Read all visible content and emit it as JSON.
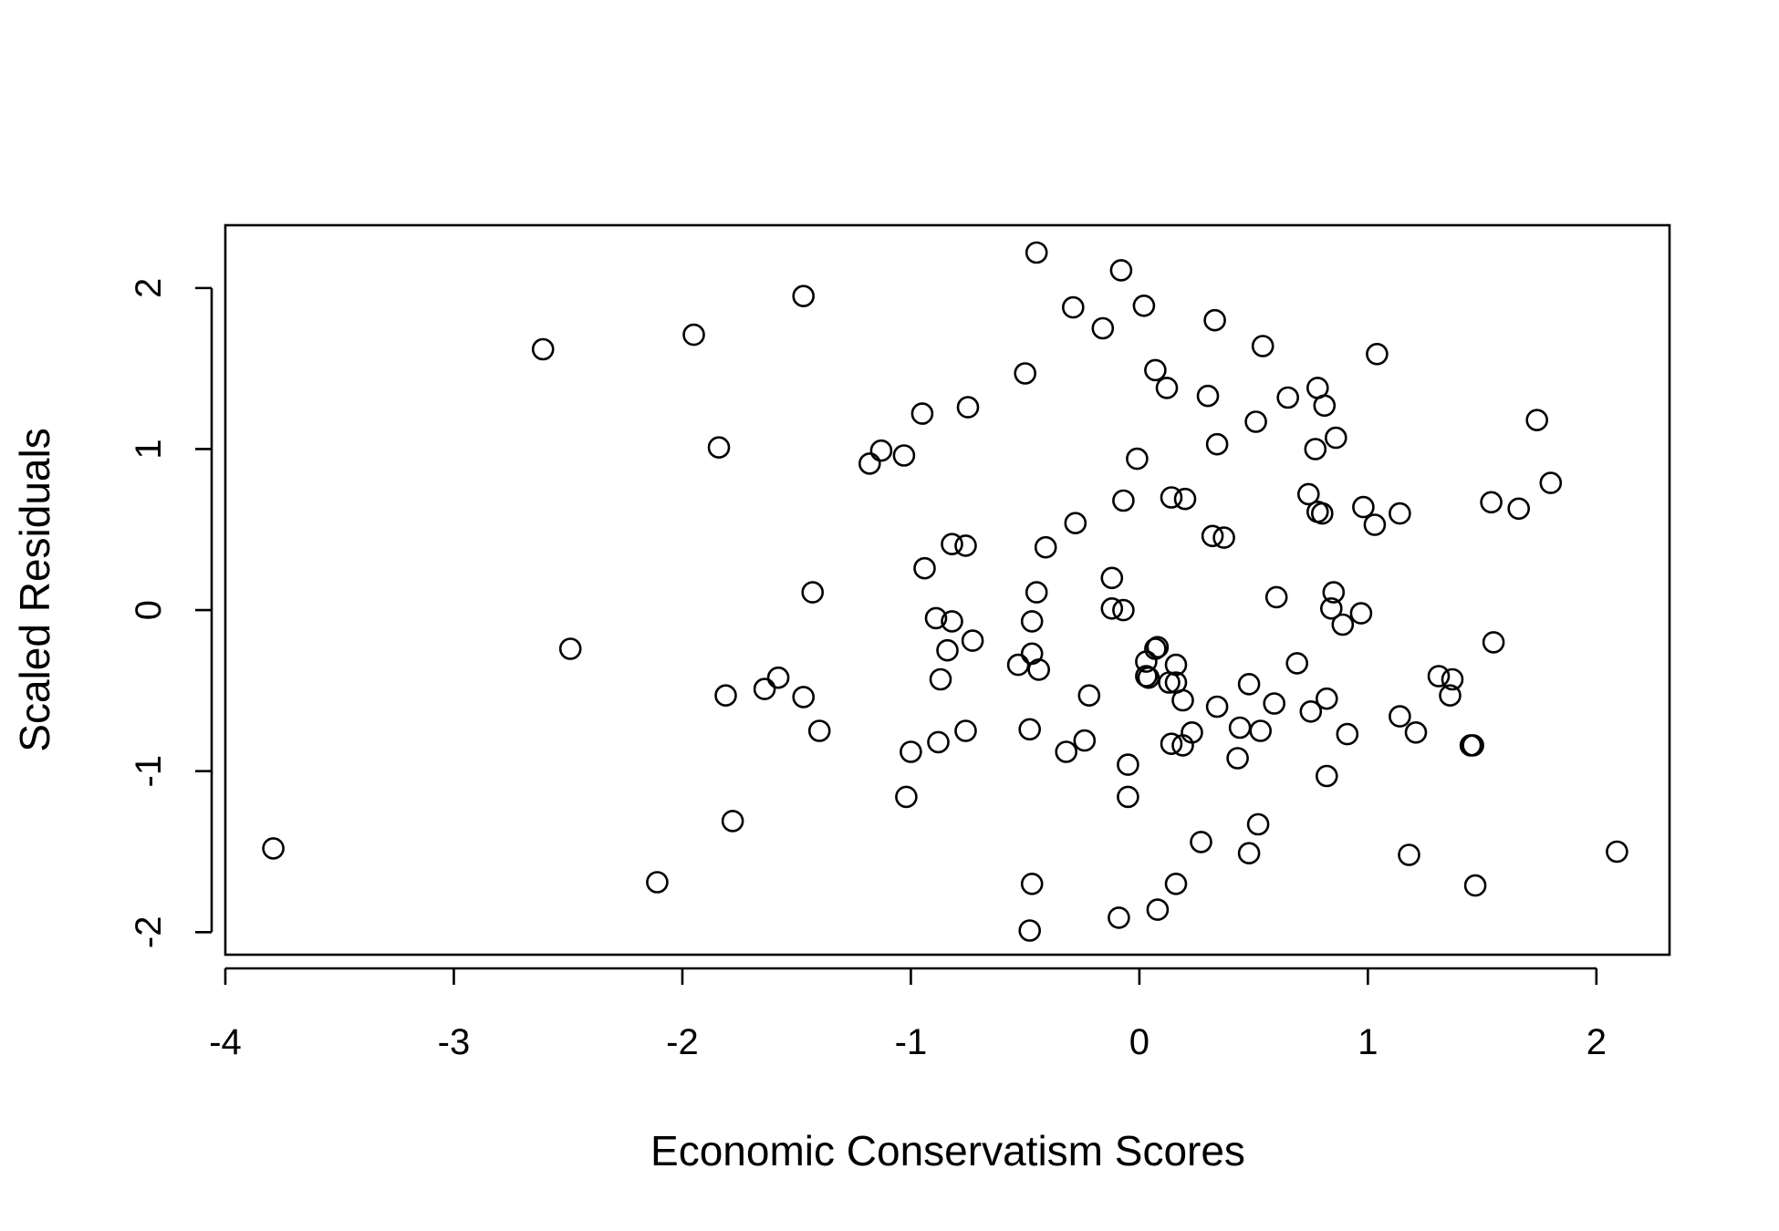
{
  "chart_data": {
    "type": "scatter",
    "title": "",
    "xlabel": "Economic Conservatism Scores",
    "ylabel": "Scaled Residuals",
    "xlim": [
      -4.0,
      2.32
    ],
    "ylim": [
      -2.14,
      2.39
    ],
    "xticks": [
      -4,
      -3,
      -2,
      -1,
      0,
      1,
      2
    ],
    "yticks": [
      -2,
      -1,
      0,
      1,
      2
    ],
    "xtick_labels": [
      "-4",
      "-3",
      "-2",
      "-1",
      "0",
      "1",
      "2"
    ],
    "ytick_labels": [
      "-2",
      "-1",
      "0",
      "1",
      "2"
    ],
    "grid": false,
    "legend": "none",
    "marker": "open-circle",
    "points": [
      {
        "x": -3.79,
        "y": -1.48
      },
      {
        "x": -2.61,
        "y": 1.62
      },
      {
        "x": -2.49,
        "y": -0.24
      },
      {
        "x": -2.11,
        "y": -1.69
      },
      {
        "x": -1.95,
        "y": 1.71
      },
      {
        "x": -1.84,
        "y": 1.01
      },
      {
        "x": -1.81,
        "y": -0.53
      },
      {
        "x": -1.78,
        "y": -1.31
      },
      {
        "x": -1.64,
        "y": -0.49
      },
      {
        "x": -1.58,
        "y": -0.42
      },
      {
        "x": -1.47,
        "y": 1.95
      },
      {
        "x": -1.47,
        "y": -0.54
      },
      {
        "x": -1.43,
        "y": 0.11
      },
      {
        "x": -1.4,
        "y": -0.75
      },
      {
        "x": -1.18,
        "y": 0.91
      },
      {
        "x": -1.13,
        "y": 0.99
      },
      {
        "x": -1.03,
        "y": 0.96
      },
      {
        "x": -1.02,
        "y": -1.16
      },
      {
        "x": -1.0,
        "y": -0.88
      },
      {
        "x": -0.95,
        "y": 1.22
      },
      {
        "x": -0.94,
        "y": 0.26
      },
      {
        "x": -0.89,
        "y": -0.05
      },
      {
        "x": -0.88,
        "y": -0.82
      },
      {
        "x": -0.87,
        "y": -0.43
      },
      {
        "x": -0.84,
        "y": -0.25
      },
      {
        "x": -0.82,
        "y": 0.41
      },
      {
        "x": -0.82,
        "y": -0.07
      },
      {
        "x": -0.76,
        "y": 0.4
      },
      {
        "x": -0.76,
        "y": -0.75
      },
      {
        "x": -0.75,
        "y": 1.26
      },
      {
        "x": -0.73,
        "y": -0.19
      },
      {
        "x": -0.53,
        "y": -0.34
      },
      {
        "x": -0.5,
        "y": 1.47
      },
      {
        "x": -0.48,
        "y": -0.74
      },
      {
        "x": -0.47,
        "y": -0.07
      },
      {
        "x": -0.47,
        "y": -0.27
      },
      {
        "x": -0.47,
        "y": -1.7
      },
      {
        "x": -0.48,
        "y": -1.99
      },
      {
        "x": -0.45,
        "y": 2.22
      },
      {
        "x": -0.45,
        "y": 0.11
      },
      {
        "x": -0.44,
        "y": -0.37
      },
      {
        "x": -0.41,
        "y": 0.39
      },
      {
        "x": -0.32,
        "y": -0.88
      },
      {
        "x": -0.29,
        "y": 1.88
      },
      {
        "x": -0.28,
        "y": 0.54
      },
      {
        "x": -0.24,
        "y": -0.81
      },
      {
        "x": -0.22,
        "y": -0.53
      },
      {
        "x": -0.16,
        "y": 1.75
      },
      {
        "x": -0.12,
        "y": 0.2
      },
      {
        "x": -0.12,
        "y": 0.01
      },
      {
        "x": -0.09,
        "y": -1.91
      },
      {
        "x": -0.08,
        "y": 2.11
      },
      {
        "x": -0.07,
        "y": 0.68
      },
      {
        "x": -0.07,
        "y": 0.0
      },
      {
        "x": -0.05,
        "y": -0.96
      },
      {
        "x": -0.05,
        "y": -1.16
      },
      {
        "x": -0.01,
        "y": 0.94
      },
      {
        "x": 0.02,
        "y": 1.89
      },
      {
        "x": 0.03,
        "y": -0.32
      },
      {
        "x": 0.03,
        "y": -0.41
      },
      {
        "x": 0.04,
        "y": -0.42
      },
      {
        "x": 0.07,
        "y": 1.49
      },
      {
        "x": 0.07,
        "y": -0.24
      },
      {
        "x": 0.08,
        "y": -0.23
      },
      {
        "x": 0.08,
        "y": -1.86
      },
      {
        "x": 0.12,
        "y": 1.38
      },
      {
        "x": 0.13,
        "y": -0.45
      },
      {
        "x": 0.14,
        "y": 0.7
      },
      {
        "x": 0.14,
        "y": -0.83
      },
      {
        "x": 0.16,
        "y": -0.34
      },
      {
        "x": 0.16,
        "y": -0.45
      },
      {
        "x": 0.16,
        "y": -1.7
      },
      {
        "x": 0.19,
        "y": -0.84
      },
      {
        "x": 0.19,
        "y": -0.56
      },
      {
        "x": 0.2,
        "y": 0.69
      },
      {
        "x": 0.23,
        "y": -0.76
      },
      {
        "x": 0.27,
        "y": -1.44
      },
      {
        "x": 0.3,
        "y": 1.33
      },
      {
        "x": 0.32,
        "y": 0.46
      },
      {
        "x": 0.33,
        "y": 1.8
      },
      {
        "x": 0.34,
        "y": -0.6
      },
      {
        "x": 0.34,
        "y": 1.03
      },
      {
        "x": 0.37,
        "y": 0.45
      },
      {
        "x": 0.43,
        "y": -0.92
      },
      {
        "x": 0.44,
        "y": -0.73
      },
      {
        "x": 0.48,
        "y": -0.46
      },
      {
        "x": 0.48,
        "y": -1.51
      },
      {
        "x": 0.51,
        "y": 1.17
      },
      {
        "x": 0.52,
        "y": -1.33
      },
      {
        "x": 0.53,
        "y": -0.75
      },
      {
        "x": 0.54,
        "y": 1.64
      },
      {
        "x": 0.59,
        "y": -0.58
      },
      {
        "x": 0.6,
        "y": 0.08
      },
      {
        "x": 0.65,
        "y": 1.32
      },
      {
        "x": 0.69,
        "y": -0.33
      },
      {
        "x": 0.74,
        "y": 0.72
      },
      {
        "x": 0.75,
        "y": -0.63
      },
      {
        "x": 0.77,
        "y": 1.0
      },
      {
        "x": 0.78,
        "y": 1.38
      },
      {
        "x": 0.78,
        "y": 0.61
      },
      {
        "x": 0.8,
        "y": 0.6
      },
      {
        "x": 0.81,
        "y": 1.27
      },
      {
        "x": 0.82,
        "y": -0.55
      },
      {
        "x": 0.82,
        "y": -1.03
      },
      {
        "x": 0.84,
        "y": 0.01
      },
      {
        "x": 0.85,
        "y": 0.11
      },
      {
        "x": 0.86,
        "y": 1.07
      },
      {
        "x": 0.89,
        "y": -0.09
      },
      {
        "x": 0.91,
        "y": -0.77
      },
      {
        "x": 0.97,
        "y": -0.02
      },
      {
        "x": 0.98,
        "y": 0.64
      },
      {
        "x": 1.03,
        "y": 0.53
      },
      {
        "x": 1.04,
        "y": 1.59
      },
      {
        "x": 1.14,
        "y": -0.66
      },
      {
        "x": 1.14,
        "y": 0.6
      },
      {
        "x": 1.18,
        "y": -1.52
      },
      {
        "x": 1.21,
        "y": -0.76
      },
      {
        "x": 1.31,
        "y": -0.41
      },
      {
        "x": 1.36,
        "y": -0.53
      },
      {
        "x": 1.37,
        "y": -0.43
      },
      {
        "x": 1.45,
        "y": -0.84
      },
      {
        "x": 1.46,
        "y": -0.84
      },
      {
        "x": 1.47,
        "y": -1.71
      },
      {
        "x": 1.54,
        "y": 0.67
      },
      {
        "x": 1.55,
        "y": -0.2
      },
      {
        "x": 1.66,
        "y": 0.63
      },
      {
        "x": 1.74,
        "y": 1.18
      },
      {
        "x": 1.8,
        "y": 0.79
      },
      {
        "x": 2.09,
        "y": -1.5
      }
    ]
  }
}
